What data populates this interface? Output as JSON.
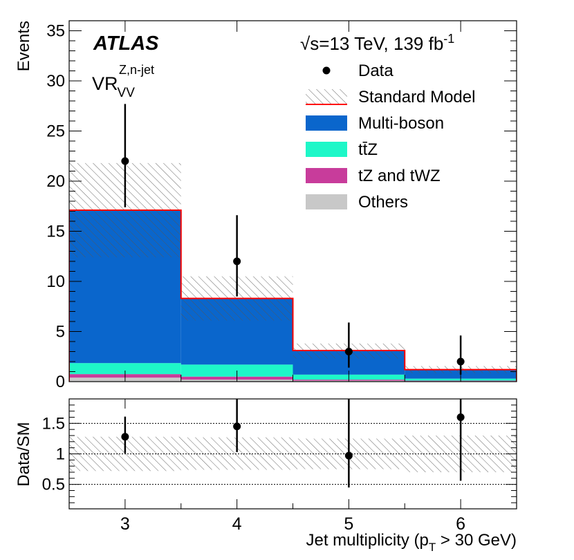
{
  "colors": {
    "multi_boson": "#0a66cc",
    "ttz": "#1ef7c8",
    "tz_twz": "#c83c9b",
    "others": "#c8c8c8",
    "sm_line": "#ff0000"
  },
  "labels": {
    "atlas": "ATLAS",
    "energy": "√s=13 TeV, 139 fb",
    "energy_sup": "-1",
    "region": "VR",
    "region_sub": "VV",
    "region_sup": "Z,n-jet"
  },
  "chart_data": [
    {
      "type": "bar",
      "stacked": true,
      "ylabel": "Events",
      "ylim": [
        0,
        36
      ],
      "yticks": [
        0,
        5,
        10,
        15,
        20,
        25,
        30,
        35
      ],
      "xlim": [
        2.5,
        6.5
      ],
      "categories": [
        "3",
        "4",
        "5",
        "6"
      ],
      "series": [
        {
          "name": "Others",
          "values": [
            0.4,
            0.2,
            0.1,
            0.05
          ]
        },
        {
          "name": "tZ and tWZ",
          "values": [
            0.35,
            0.3,
            0.1,
            0.05
          ]
        },
        {
          "name": "tt̄Z",
          "values": [
            1.1,
            1.2,
            0.5,
            0.2
          ]
        },
        {
          "name": "Multi-boson",
          "values": [
            15.25,
            6.6,
            2.4,
            0.9
          ]
        }
      ],
      "standard_model": [
        17.1,
        8.3,
        3.1,
        1.2
      ],
      "uncertainty_band": {
        "low": [
          12.4,
          6.1,
          2.3,
          0.85
        ],
        "high": [
          21.8,
          10.5,
          3.8,
          1.55
        ]
      },
      "data": {
        "x": [
          3,
          4,
          5,
          6
        ],
        "y": [
          22,
          12,
          3,
          2
        ],
        "err_low": [
          4.6,
          3.5,
          1.6,
          1.3
        ],
        "err_high": [
          5.7,
          4.6,
          2.9,
          2.6
        ]
      },
      "legend": [
        {
          "label": "Data",
          "kind": "marker"
        },
        {
          "label": "Standard Model",
          "kind": "sm"
        },
        {
          "label": "Multi-boson",
          "kind": "fill",
          "color_key": "multi_boson"
        },
        {
          "label": "tt̄Z",
          "kind": "fill",
          "color_key": "ttz"
        },
        {
          "label": "tZ and tWZ",
          "kind": "fill",
          "color_key": "tz_twz"
        },
        {
          "label": "Others",
          "kind": "fill",
          "color_key": "others"
        }
      ],
      "legend_position": "top-right"
    },
    {
      "type": "scatter",
      "ylabel": "Data/SM",
      "xlabel": "Jet multiplicity (p",
      "xlabel_sub": "T",
      "xlabel_tail": " > 30 GeV)",
      "ylim": [
        0.1,
        1.9
      ],
      "yticks": [
        "0.5",
        "1",
        "1.5"
      ],
      "xticks": [
        "3",
        "4",
        "5",
        "6"
      ],
      "gridlines": [
        0.5,
        1.0,
        1.5
      ],
      "band": {
        "low": [
          0.72,
          0.74,
          0.75,
          0.7
        ],
        "high": [
          1.28,
          1.27,
          1.25,
          1.3
        ]
      },
      "ratio": {
        "x": [
          3,
          4,
          5,
          6
        ],
        "y": [
          1.28,
          1.45,
          0.97,
          1.6
        ],
        "err_low": [
          0.27,
          0.42,
          0.52,
          1.04
        ],
        "err_high": [
          0.33,
          0.55,
          0.93,
          2.15
        ]
      }
    }
  ]
}
